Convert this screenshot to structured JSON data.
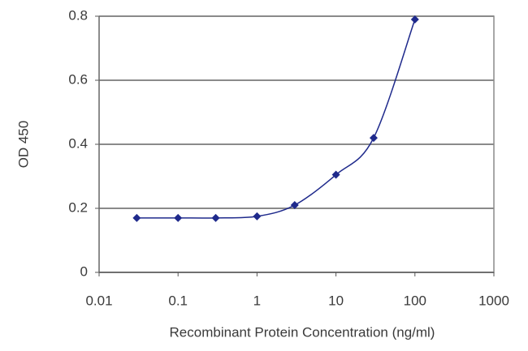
{
  "chart_data": {
    "type": "line",
    "x_label": "Recombinant Protein Concentration (ng/ml)",
    "y_label": "OD 450",
    "x": [
      0.03,
      0.1,
      0.3,
      1,
      3,
      10,
      30,
      100
    ],
    "series": [
      {
        "color": "#1f2a8c",
        "values": [
          0.17,
          0.17,
          0.17,
          0.175,
          0.21,
          0.305,
          0.42,
          0.79
        ]
      }
    ],
    "xscale": "log",
    "xlim": [
      0.01,
      1000
    ],
    "xticks": [
      0.01,
      0.1,
      1,
      10,
      100,
      1000
    ],
    "ylim": [
      0,
      0.8
    ],
    "yticks": [
      0,
      0.2,
      0.4,
      0.6,
      0.8
    ],
    "grid": true,
    "smooth": true
  }
}
